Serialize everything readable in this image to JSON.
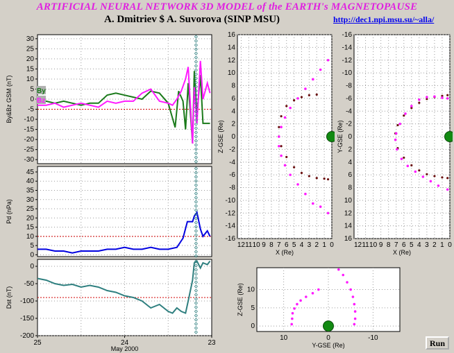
{
  "header": {
    "title": "ARTIFICIAL NEURAL NETWORK 3D MODEL of the EARTH's MAGNETOPAUSE",
    "authors": "A. Dmitriev $ A. Suvorova (SINP MSU)",
    "link": "http://dec1.npi.msu.su/~alla/"
  },
  "colors": {
    "by": "#1a7a1a",
    "bz": "#ff1aff",
    "pd": "#0000e0",
    "dst": "#2e7f7f",
    "ref_line": "#d00000",
    "earth": "#128a12",
    "model_dots": "#6b1010"
  },
  "run_label": "Run",
  "chart_data": [
    {
      "type": "line",
      "ylabel": "By&Bz GSM (nT)",
      "ylim": [
        -32,
        32
      ],
      "yticks": [
        "30",
        "25",
        "20",
        "15",
        "10",
        "5",
        "0",
        "-5",
        "-10",
        "-15",
        "-20",
        "-25",
        "-30"
      ],
      "ref_line": -5,
      "legend": [
        "By",
        "Bz"
      ],
      "series": [
        {
          "name": "By",
          "x": [
            25,
            24.9,
            24.8,
            24.7,
            24.6,
            24.5,
            24.4,
            24.3,
            24.2,
            24.1,
            24.0,
            23.9,
            23.8,
            23.7,
            23.6,
            23.5,
            23.42,
            23.38,
            23.33,
            23.3,
            23.27,
            23.22,
            23.2,
            23.17,
            23.13,
            23.1,
            23.05,
            23.02
          ],
          "values": [
            -2,
            -1,
            -2,
            -1,
            -2,
            -3,
            -2,
            -2,
            2,
            3,
            2,
            1,
            0,
            4,
            3,
            -2,
            -14,
            4,
            -1,
            -15,
            8,
            -22,
            14,
            -8,
            12,
            -12,
            -12,
            -12
          ]
        },
        {
          "name": "Bz",
          "x": [
            25,
            24.9,
            24.8,
            24.7,
            24.6,
            24.5,
            24.4,
            24.3,
            24.2,
            24.1,
            24.0,
            23.9,
            23.8,
            23.7,
            23.6,
            23.5,
            23.45,
            23.4,
            23.35,
            23.3,
            23.27,
            23.22,
            23.2,
            23.17,
            23.13,
            23.1,
            23.05,
            23.02
          ],
          "values": [
            -3,
            -3,
            -2,
            -4,
            -3,
            -2,
            -3,
            -4,
            -1,
            -2,
            -1,
            -1,
            3,
            5,
            -1,
            -2,
            -3,
            0,
            4,
            10,
            16,
            -22,
            6,
            -12,
            19,
            0,
            8,
            3
          ]
        }
      ]
    },
    {
      "type": "line",
      "ylabel": "Pd (nPa)",
      "ylim": [
        -1,
        48
      ],
      "yticks": [
        "45",
        "40",
        "35",
        "30",
        "25",
        "20",
        "15",
        "10",
        "5",
        "0"
      ],
      "ref_line": 10,
      "series": [
        {
          "name": "Pd",
          "x": [
            25,
            24.9,
            24.8,
            24.7,
            24.6,
            24.5,
            24.4,
            24.3,
            24.2,
            24.1,
            24.0,
            23.9,
            23.8,
            23.7,
            23.6,
            23.5,
            23.4,
            23.33,
            23.28,
            23.22,
            23.2,
            23.17,
            23.13,
            23.1,
            23.05,
            23.02
          ],
          "values": [
            3,
            3,
            2,
            2,
            1,
            2,
            2,
            2,
            3,
            3,
            4,
            3,
            3,
            4,
            3,
            3,
            4,
            9,
            18,
            18,
            21,
            23,
            14,
            10,
            13,
            10
          ]
        }
      ]
    },
    {
      "type": "line",
      "ylabel": "Dst (nT)",
      "ylim": [
        -200,
        20
      ],
      "yticks": [
        "0",
        "-50",
        "-100",
        "-150",
        "-200"
      ],
      "ref_line": -90,
      "xticks": [
        "25",
        "24",
        "23"
      ],
      "xlabel": "May 2000",
      "series": [
        {
          "name": "Dst",
          "x": [
            25,
            24.9,
            24.8,
            24.7,
            24.6,
            24.5,
            24.4,
            24.3,
            24.2,
            24.1,
            24.0,
            23.9,
            23.8,
            23.7,
            23.6,
            23.5,
            23.45,
            23.4,
            23.35,
            23.3,
            23.27,
            23.22,
            23.2,
            23.17,
            23.13,
            23.1,
            23.05,
            23.02
          ],
          "values": [
            -35,
            -40,
            -50,
            -55,
            -52,
            -60,
            -55,
            -60,
            -70,
            -75,
            -85,
            -90,
            -100,
            -120,
            -110,
            -130,
            -135,
            -120,
            -130,
            -135,
            -100,
            -40,
            10,
            15,
            -5,
            10,
            5,
            15
          ]
        }
      ]
    },
    {
      "type": "scatter",
      "xlabel": "X (Re)",
      "ylabel": "Z-GSE (Re)",
      "xticks": [
        "12",
        "11",
        "10",
        "9",
        "8",
        "7",
        "6",
        "5",
        "4",
        "3",
        "2",
        "1",
        "0"
      ],
      "yticks": [
        "16",
        "14",
        "12",
        "10",
        "8",
        "6",
        "4",
        "2",
        "0",
        "-2",
        "-4",
        "-6",
        "-8",
        "-10",
        "-12",
        "-14",
        "-16"
      ],
      "series": [
        {
          "name": "model",
          "x": [
            2,
            3,
            4,
            5,
            6,
            6.7,
            7,
            7,
            6.7,
            6,
            5,
            4,
            3,
            2,
            1,
            0.5
          ],
          "y": [
            6.6,
            6.5,
            6.2,
            5.7,
            4.8,
            3.2,
            1.5,
            0,
            -1.5,
            -3.2,
            -4.8,
            -5.7,
            -6.2,
            -6.5,
            -6.6,
            -6.7
          ]
        },
        {
          "name": "magnetopause",
          "x": [
            0.5,
            1.5,
            2.5,
            3.5,
            4.5,
            5.5,
            6.2,
            6.7,
            7,
            7,
            6.7,
            6.2,
            5.5,
            4.5,
            3.5,
            2.5,
            1.5,
            0.5
          ],
          "y": [
            12,
            10.5,
            9,
            7.5,
            6,
            4.5,
            3,
            1.5,
            0,
            -1.5,
            -3,
            -4.5,
            -6,
            -7.5,
            -9,
            -10.5,
            -11,
            -12
          ]
        }
      ]
    },
    {
      "type": "scatter",
      "xlabel": "X (Re)",
      "ylabel": "Y-GSE (Re)",
      "xticks": [
        "12",
        "11",
        "10",
        "9",
        "8",
        "7",
        "6",
        "5",
        "4",
        "3",
        "2",
        "1",
        "0"
      ],
      "yticks": [
        "-16",
        "-14",
        "-12",
        "-10",
        "-8",
        "-6",
        "-4",
        "-2",
        "0",
        "2",
        "4",
        "6",
        "8",
        "10",
        "12",
        "14",
        "16"
      ],
      "series": [
        {
          "name": "model",
          "x": [
            0.3,
            1,
            2,
            3,
            4,
            5,
            6,
            6.8,
            7.1,
            7.1,
            6.8,
            6,
            5,
            4,
            3,
            2,
            1,
            0.3
          ],
          "y": [
            -6.5,
            -6.4,
            -6.2,
            -5.9,
            -5.3,
            -4.5,
            -3.3,
            -1.8,
            -0.5,
            0.5,
            1.8,
            3.3,
            4.5,
            5.3,
            5.9,
            6.2,
            6.4,
            6.5
          ]
        },
        {
          "name": "magnetopause",
          "x": [
            0.3,
            1,
            2,
            3,
            4,
            5,
            5.8,
            6.5,
            7,
            7.1,
            6.9,
            6.3,
            5.5,
            4.5,
            3.5,
            2.5,
            1.5,
            0.3
          ],
          "y": [
            -6,
            -6.1,
            -6.3,
            -6.2,
            -5.8,
            -4.8,
            -3.6,
            -2,
            -0.5,
            0.5,
            2,
            3.5,
            4.6,
            5.5,
            6.3,
            7,
            7.7,
            8.3
          ]
        }
      ]
    },
    {
      "type": "scatter",
      "xlabel": "Y-GSE (Re)",
      "ylabel": "Z-GSE (Re)",
      "xticks": [
        "10",
        "0",
        "-10"
      ],
      "yticks": [
        "10",
        "5",
        "0"
      ],
      "series": [
        {
          "name": "magnetopause-left",
          "x": [
            8.2,
            8.1,
            8,
            7.6,
            7,
            6.2,
            5,
            3.5,
            2.2
          ],
          "y": [
            0.5,
            2,
            3.5,
            4.8,
            6,
            7,
            8,
            9,
            10
          ]
        },
        {
          "name": "magnetopause-right",
          "x": [
            -5.8,
            -6,
            -6,
            -5.8,
            -5.5,
            -5,
            -4.2,
            -3.3,
            -2.3
          ],
          "y": [
            0.5,
            2,
            4,
            6,
            8,
            10,
            12,
            14,
            15.5
          ]
        }
      ]
    }
  ]
}
